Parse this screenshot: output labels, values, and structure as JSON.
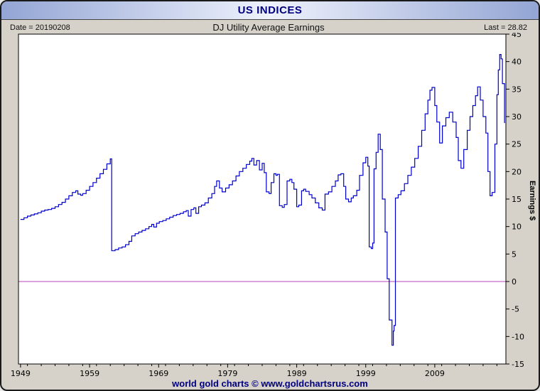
{
  "window": {
    "title": "US INDICES"
  },
  "header": {
    "date_label": "Date = 20190208",
    "chart_title": "DJ Utility Average Earnings",
    "last_label": "Last = 28.82"
  },
  "footer": {
    "credit": "world gold charts © www.goldchartsrus.com"
  },
  "colors": {
    "accent_navy": "#000080",
    "line_blue": "#0000cc",
    "zero_magenta": "#bb44bb",
    "frame_gray": "#d6d2ca"
  },
  "chart_data": {
    "type": "line",
    "title": "DJ Utility Average Earnings",
    "ylabel": "Earnings $",
    "ylim": [
      -15,
      45
    ],
    "ytick_step": 5,
    "xlim": [
      1948.7,
      2019.3
    ],
    "xticks": [
      1949,
      1959,
      1969,
      1979,
      1989,
      1999,
      2009
    ],
    "grid": false,
    "legend": "none",
    "last_value": 28.82,
    "line_color": "#0000cc",
    "zero_line_color": "#bb44bb",
    "series": [
      {
        "name": "DJ Utility Average Earnings",
        "points": [
          [
            1949.0,
            11.3
          ],
          [
            1949.5,
            11.6
          ],
          [
            1950.0,
            11.9
          ],
          [
            1950.5,
            12.1
          ],
          [
            1951.0,
            12.3
          ],
          [
            1951.5,
            12.5
          ],
          [
            1952.0,
            12.8
          ],
          [
            1952.5,
            13.0
          ],
          [
            1953.0,
            13.1
          ],
          [
            1953.5,
            13.3
          ],
          [
            1954.0,
            13.6
          ],
          [
            1954.5,
            14.0
          ],
          [
            1955.0,
            14.4
          ],
          [
            1955.5,
            15.0
          ],
          [
            1956.0,
            15.6
          ],
          [
            1956.5,
            16.2
          ],
          [
            1957.0,
            16.5
          ],
          [
            1957.3,
            15.9
          ],
          [
            1957.7,
            15.7
          ],
          [
            1958.0,
            16.0
          ],
          [
            1958.5,
            16.6
          ],
          [
            1959.0,
            17.3
          ],
          [
            1959.5,
            18.0
          ],
          [
            1960.0,
            18.8
          ],
          [
            1960.5,
            19.6
          ],
          [
            1961.0,
            20.4
          ],
          [
            1961.5,
            21.4
          ],
          [
            1962.0,
            22.3
          ],
          [
            1962.2,
            5.6
          ],
          [
            1962.7,
            5.8
          ],
          [
            1963.2,
            6.1
          ],
          [
            1963.7,
            6.3
          ],
          [
            1964.2,
            6.7
          ],
          [
            1964.7,
            7.3
          ],
          [
            1965.1,
            8.3
          ],
          [
            1965.6,
            8.7
          ],
          [
            1966.1,
            9.0
          ],
          [
            1966.6,
            9.3
          ],
          [
            1967.1,
            9.6
          ],
          [
            1967.6,
            10.0
          ],
          [
            1968.0,
            10.4
          ],
          [
            1968.3,
            9.9
          ],
          [
            1968.7,
            10.6
          ],
          [
            1969.1,
            10.9
          ],
          [
            1969.6,
            11.1
          ],
          [
            1970.1,
            11.4
          ],
          [
            1970.6,
            11.7
          ],
          [
            1971.1,
            12.0
          ],
          [
            1971.6,
            12.2
          ],
          [
            1972.1,
            12.4
          ],
          [
            1972.6,
            12.7
          ],
          [
            1973.0,
            12.9
          ],
          [
            1973.3,
            11.9
          ],
          [
            1973.7,
            13.1
          ],
          [
            1974.1,
            13.4
          ],
          [
            1974.4,
            12.4
          ],
          [
            1974.8,
            13.6
          ],
          [
            1975.2,
            13.9
          ],
          [
            1975.7,
            14.3
          ],
          [
            1976.2,
            15.2
          ],
          [
            1976.7,
            16.0
          ],
          [
            1977.1,
            17.3
          ],
          [
            1977.4,
            18.3
          ],
          [
            1977.8,
            17.0
          ],
          [
            1978.2,
            16.3
          ],
          [
            1978.7,
            17.0
          ],
          [
            1979.2,
            17.6
          ],
          [
            1979.7,
            18.3
          ],
          [
            1980.2,
            19.2
          ],
          [
            1980.7,
            20.0
          ],
          [
            1981.2,
            20.6
          ],
          [
            1981.7,
            21.3
          ],
          [
            1982.2,
            21.9
          ],
          [
            1982.5,
            22.4
          ],
          [
            1982.8,
            21.2
          ],
          [
            1983.2,
            22.0
          ],
          [
            1983.6,
            20.3
          ],
          [
            1984.0,
            21.5
          ],
          [
            1984.3,
            19.8
          ],
          [
            1984.6,
            16.3
          ],
          [
            1985.0,
            16.0
          ],
          [
            1985.3,
            18.0
          ],
          [
            1985.7,
            19.6
          ],
          [
            1986.0,
            19.3
          ],
          [
            1986.2,
            19.5
          ],
          [
            1986.5,
            13.8
          ],
          [
            1986.9,
            13.5
          ],
          [
            1987.2,
            14.0
          ],
          [
            1987.6,
            18.3
          ],
          [
            1988.0,
            18.6
          ],
          [
            1988.3,
            18.0
          ],
          [
            1988.6,
            16.8
          ],
          [
            1989.0,
            13.6
          ],
          [
            1989.3,
            13.9
          ],
          [
            1989.7,
            16.5
          ],
          [
            1990.0,
            16.8
          ],
          [
            1990.3,
            16.4
          ],
          [
            1990.8,
            15.8
          ],
          [
            1991.2,
            15.2
          ],
          [
            1991.7,
            14.3
          ],
          [
            1992.2,
            13.4
          ],
          [
            1992.7,
            13.0
          ],
          [
            1993.1,
            15.9
          ],
          [
            1993.6,
            16.3
          ],
          [
            1994.1,
            17.3
          ],
          [
            1994.6,
            18.3
          ],
          [
            1995.0,
            19.4
          ],
          [
            1995.4,
            19.6
          ],
          [
            1995.8,
            17.3
          ],
          [
            1996.1,
            15.0
          ],
          [
            1996.5,
            14.5
          ],
          [
            1996.9,
            15.2
          ],
          [
            1997.2,
            15.6
          ],
          [
            1997.7,
            16.6
          ],
          [
            1998.1,
            19.3
          ],
          [
            1998.6,
            21.6
          ],
          [
            1999.0,
            22.6
          ],
          [
            1999.3,
            21.0
          ],
          [
            1999.5,
            6.3
          ],
          [
            1999.8,
            6.0
          ],
          [
            2000.0,
            7.0
          ],
          [
            2000.2,
            20.5
          ],
          [
            2000.5,
            23.5
          ],
          [
            2000.8,
            26.8
          ],
          [
            2001.1,
            24.0
          ],
          [
            2001.4,
            15.0
          ],
          [
            2001.8,
            9.0
          ],
          [
            2002.1,
            0.5
          ],
          [
            2002.4,
            -7.0
          ],
          [
            2002.8,
            -11.6
          ],
          [
            2003.0,
            -9.0
          ],
          [
            2003.1,
            -8.0
          ],
          [
            2003.3,
            15.2
          ],
          [
            2003.7,
            15.8
          ],
          [
            2004.1,
            16.5
          ],
          [
            2004.6,
            17.8
          ],
          [
            2005.1,
            19.3
          ],
          [
            2005.6,
            20.8
          ],
          [
            2006.1,
            22.4
          ],
          [
            2006.6,
            24.6
          ],
          [
            2007.1,
            27.5
          ],
          [
            2007.6,
            30.5
          ],
          [
            2008.0,
            33.0
          ],
          [
            2008.3,
            34.8
          ],
          [
            2008.6,
            35.3
          ],
          [
            2009.0,
            32.0
          ],
          [
            2009.3,
            29.0
          ],
          [
            2009.7,
            25.2
          ],
          [
            2010.1,
            28.3
          ],
          [
            2010.6,
            29.8
          ],
          [
            2011.1,
            30.8
          ],
          [
            2011.6,
            29.0
          ],
          [
            2012.1,
            26.2
          ],
          [
            2012.4,
            22.0
          ],
          [
            2012.8,
            20.6
          ],
          [
            2013.2,
            24.0
          ],
          [
            2013.7,
            27.5
          ],
          [
            2014.1,
            30.0
          ],
          [
            2014.5,
            32.0
          ],
          [
            2014.9,
            33.8
          ],
          [
            2015.2,
            35.4
          ],
          [
            2015.6,
            33.0
          ],
          [
            2016.0,
            30.0
          ],
          [
            2016.4,
            27.0
          ],
          [
            2016.7,
            20.0
          ],
          [
            2017.0,
            15.6
          ],
          [
            2017.3,
            16.2
          ],
          [
            2017.7,
            25.0
          ],
          [
            2018.0,
            34.0
          ],
          [
            2018.2,
            38.5
          ],
          [
            2018.4,
            41.3
          ],
          [
            2018.6,
            40.5
          ],
          [
            2018.8,
            36.0
          ],
          [
            2019.1,
            28.82
          ]
        ]
      }
    ]
  }
}
